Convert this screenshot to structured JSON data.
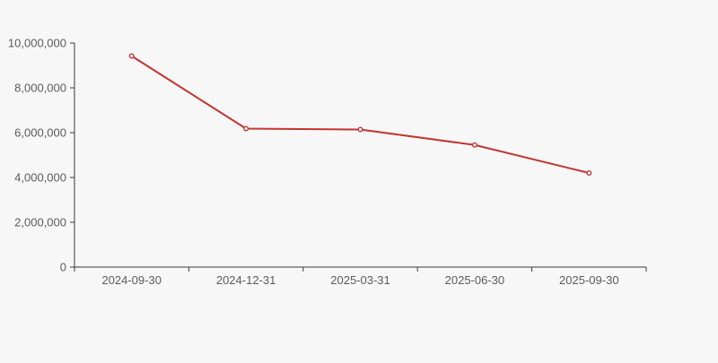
{
  "page": {
    "background_color": "#f7f7f7"
  },
  "chart_data": {
    "type": "line",
    "title": "",
    "xlabel": "",
    "ylabel": "",
    "categories": [
      "2024-09-30",
      "2024-12-31",
      "2025-03-31",
      "2025-06-30",
      "2025-09-30"
    ],
    "series": [
      {
        "name": "",
        "values": [
          9420000,
          6180000,
          6140000,
          5450000,
          4200000
        ],
        "color": "#c23531",
        "marker": "open-circle"
      }
    ],
    "ylim": [
      0,
      10000000
    ],
    "y_tick_interval": 2000000,
    "y_tick_labels": [
      "0",
      "2,000,000",
      "4,000,000",
      "6,000,000",
      "8,000,000",
      "10,000,000"
    ],
    "grid": false,
    "legend_position": "none",
    "axis_color": "#3a3a3a",
    "tick_label_color": "#5b5b5b",
    "x_axis_boundary_ticks": true
  }
}
